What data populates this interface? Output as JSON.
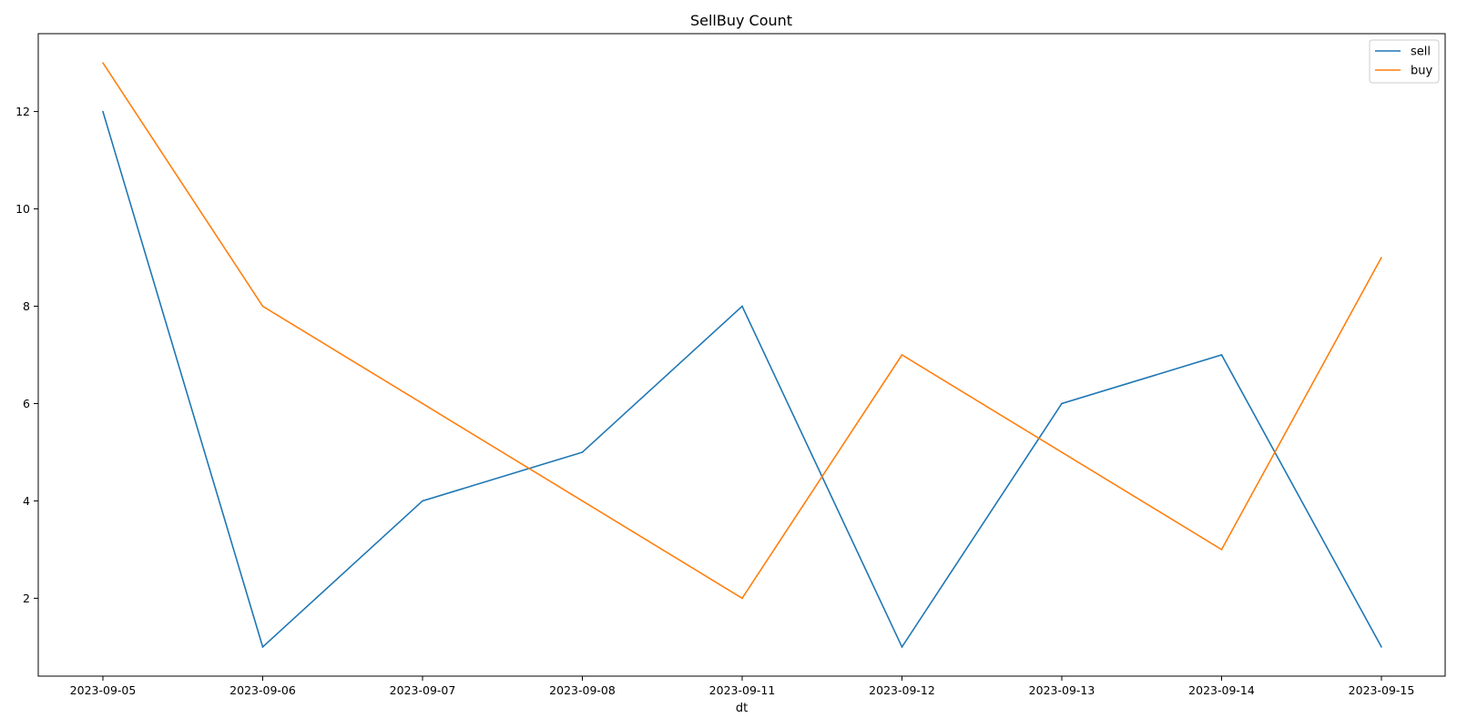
{
  "chart_data": {
    "type": "line",
    "title": "SellBuy Count",
    "xlabel": "dt",
    "ylabel": "",
    "categories": [
      "2023-09-05",
      "2023-09-06",
      "2023-09-07",
      "2023-09-08",
      "2023-09-11",
      "2023-09-12",
      "2023-09-13",
      "2023-09-14",
      "2023-09-15"
    ],
    "series": [
      {
        "name": "sell",
        "color": "#1f77b4",
        "values": [
          12,
          1,
          4,
          5,
          8,
          1,
          6,
          7,
          1
        ]
      },
      {
        "name": "buy",
        "color": "#ff7f0e",
        "values": [
          13,
          8,
          6,
          4,
          2,
          7,
          5,
          3,
          9
        ]
      }
    ],
    "ylim": [
      0.4,
      13.6
    ],
    "yticks": [
      2,
      4,
      6,
      8,
      10,
      12
    ],
    "grid": false,
    "legend_position": "top-right"
  }
}
